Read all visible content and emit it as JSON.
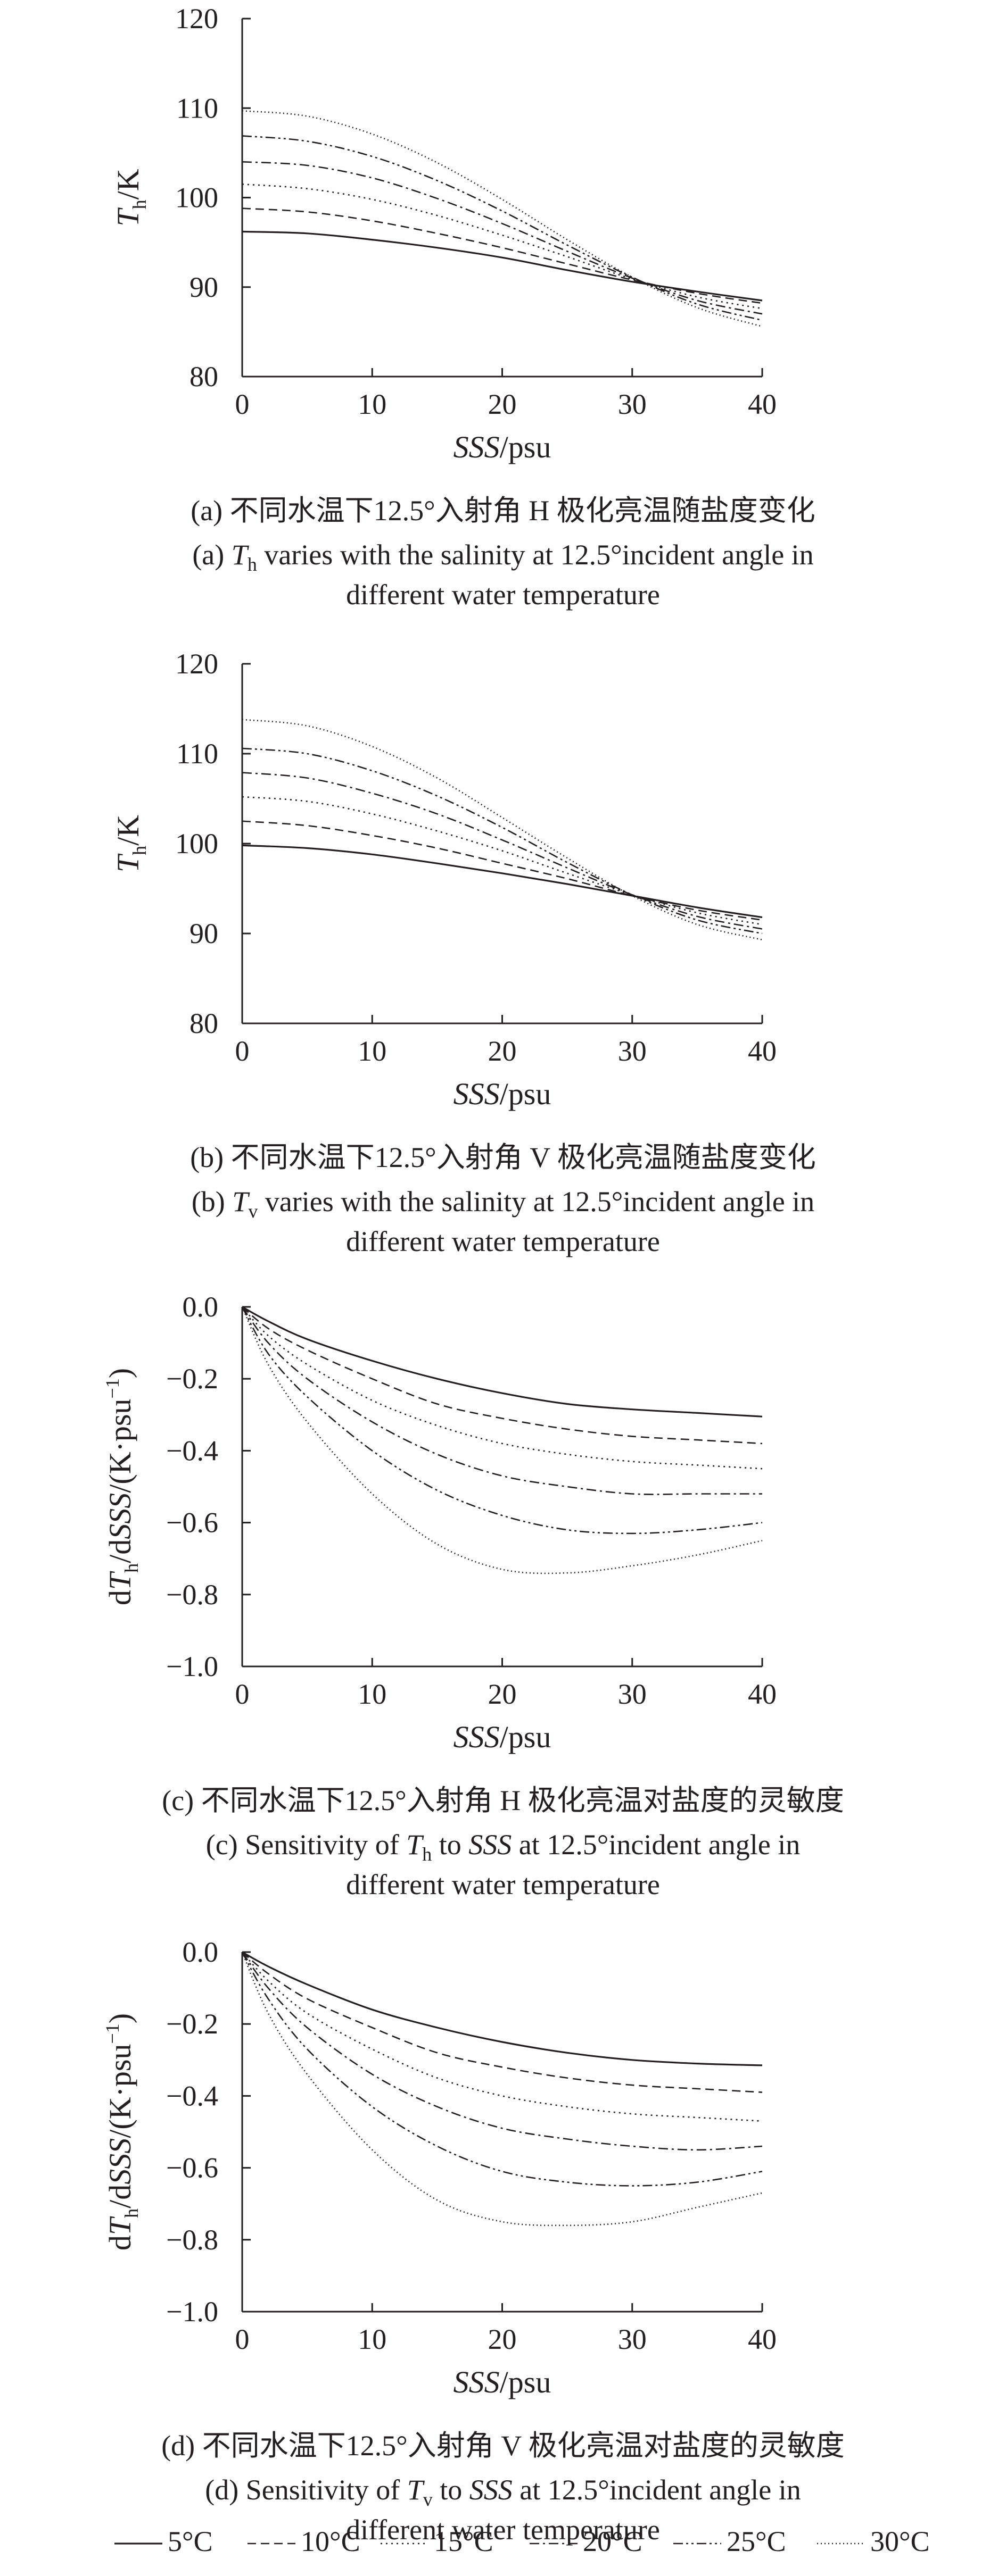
{
  "figure": {
    "legend": {
      "position": "bottom",
      "entries": [
        {
          "label": "5°C",
          "style": "solid"
        },
        {
          "label": "10°C",
          "style": "dash"
        },
        {
          "label": "15°C",
          "style": "dot"
        },
        {
          "label": "20°C",
          "style": "dashdot"
        },
        {
          "label": "25°C",
          "style": "dashdotdot"
        },
        {
          "label": "30°C",
          "style": "densedot"
        }
      ]
    }
  },
  "chart_data": [
    {
      "id": "a",
      "type": "line",
      "xlabel": "SSS/psu",
      "ylabel": "Th/K",
      "ylabel_main": "T",
      "ylabel_sub": "h",
      "ylabel_unit": "/K",
      "xlim": [
        0,
        40
      ],
      "ylim": [
        80,
        120
      ],
      "xticks": [
        0,
        10,
        20,
        30,
        40
      ],
      "yticks": [
        80,
        90,
        100,
        110,
        120
      ],
      "ytick_labels": [
        "80",
        "90",
        "100",
        "110",
        "120"
      ],
      "caption_cn": "(a) 不同水温下12.5°入射角 H 极化亮温随盐度变化",
      "caption_en_line1": "(a) Th varies with the salinity at 12.5°incident angle in",
      "caption_en_line2": "different water temperature",
      "x": [
        0,
        5,
        10,
        15,
        20,
        25,
        30,
        35,
        40
      ],
      "series": [
        {
          "name": "5°C",
          "values": [
            96.2,
            96.0,
            95.3,
            94.4,
            93.3,
            91.9,
            90.6,
            89.5,
            88.5
          ]
        },
        {
          "name": "10°C",
          "values": [
            98.8,
            98.4,
            97.4,
            96.0,
            94.4,
            92.6,
            90.8,
            89.3,
            88.2
          ]
        },
        {
          "name": "15°C",
          "values": [
            101.5,
            101.0,
            99.8,
            98.0,
            95.8,
            93.4,
            90.9,
            88.9,
            87.6
          ]
        },
        {
          "name": "20°C",
          "values": [
            104.0,
            103.6,
            102.2,
            99.9,
            97.1,
            94.0,
            91.0,
            88.5,
            87.0
          ]
        },
        {
          "name": "25°C",
          "values": [
            106.9,
            106.3,
            104.6,
            101.9,
            98.5,
            94.7,
            91.1,
            88.1,
            86.3
          ]
        },
        {
          "name": "30°C",
          "values": [
            109.7,
            109.1,
            107.1,
            103.9,
            99.8,
            95.3,
            91.1,
            87.7,
            85.6
          ]
        }
      ]
    },
    {
      "id": "b",
      "type": "line",
      "xlabel": "SSS/psu",
      "ylabel": "Th/K",
      "ylabel_main": "T",
      "ylabel_sub": "h",
      "ylabel_unit": "/K",
      "xlim": [
        0,
        40
      ],
      "ylim": [
        80,
        120
      ],
      "xticks": [
        0,
        10,
        20,
        30,
        40
      ],
      "yticks": [
        80,
        90,
        100,
        110,
        120
      ],
      "ytick_labels": [
        "80",
        "90",
        "100",
        "110",
        "120"
      ],
      "caption_cn": "(b) 不同水温下12.5°入射角 V 极化亮温随盐度变化",
      "caption_en_line1": "(b) Tv varies with the salinity at 12.5°incident angle in",
      "caption_en_line2": "different water temperature",
      "x": [
        0,
        5,
        10,
        15,
        20,
        25,
        30,
        35,
        40
      ],
      "series": [
        {
          "name": "5°C",
          "values": [
            99.8,
            99.5,
            98.8,
            97.8,
            96.7,
            95.5,
            94.2,
            92.9,
            91.8
          ]
        },
        {
          "name": "10°C",
          "values": [
            102.5,
            102.0,
            100.9,
            99.5,
            97.8,
            96.1,
            94.2,
            92.6,
            91.5
          ]
        },
        {
          "name": "15°C",
          "values": [
            105.2,
            104.7,
            103.3,
            101.4,
            99.2,
            96.7,
            94.3,
            92.3,
            91.0
          ]
        },
        {
          "name": "20°C",
          "values": [
            107.9,
            107.3,
            105.6,
            103.3,
            100.4,
            97.3,
            94.3,
            91.9,
            90.5
          ]
        },
        {
          "name": "25°C",
          "values": [
            110.6,
            110.0,
            108.1,
            105.3,
            101.8,
            97.9,
            94.3,
            91.5,
            90.0
          ]
        },
        {
          "name": "30°C",
          "values": [
            113.8,
            113.1,
            110.8,
            107.3,
            102.9,
            98.4,
            94.2,
            91.0,
            89.3
          ]
        }
      ]
    },
    {
      "id": "c",
      "type": "line",
      "xlabel": "SSS/psu",
      "ylabel": "dTh/dSSS/(K·psu−1)",
      "ylabel_main": "dT",
      "ylabel_sub": "h",
      "ylabel_unit": "/dSSS/(K·psu",
      "ylabel_sup": "−1",
      "ylabel_close": ")",
      "xlim": [
        0,
        40
      ],
      "ylim": [
        -1.0,
        0.0
      ],
      "xticks": [
        0,
        10,
        20,
        30,
        40
      ],
      "yticks": [
        -1.0,
        -0.8,
        -0.6,
        -0.4,
        -0.2,
        0.0
      ],
      "ytick_labels": [
        "−1.0",
        "−0.8",
        "−0.6",
        "−0.4",
        "−0.2",
        "0.0"
      ],
      "caption_cn": "(c) 不同水温下12.5°入射角 H 极化亮温对盐度的灵敏度",
      "caption_en_line1": "(c) Sensitivity of Th to SSS at 12.5°incident angle in",
      "caption_en_line2": "different water temperature",
      "x": [
        0,
        2,
        5,
        10,
        15,
        20,
        25,
        30,
        35,
        40
      ],
      "series": [
        {
          "name": "5°C",
          "values": [
            0.0,
            -0.04,
            -0.09,
            -0.15,
            -0.2,
            -0.24,
            -0.27,
            -0.285,
            -0.295,
            -0.305
          ]
        },
        {
          "name": "10°C",
          "values": [
            0.0,
            -0.06,
            -0.12,
            -0.2,
            -0.27,
            -0.31,
            -0.34,
            -0.36,
            -0.37,
            -0.38
          ]
        },
        {
          "name": "15°C",
          "values": [
            0.0,
            -0.08,
            -0.16,
            -0.26,
            -0.33,
            -0.38,
            -0.41,
            -0.43,
            -0.44,
            -0.45
          ]
        },
        {
          "name": "20°C",
          "values": [
            0.0,
            -0.1,
            -0.2,
            -0.32,
            -0.41,
            -0.47,
            -0.5,
            -0.52,
            -0.52,
            -0.52
          ]
        },
        {
          "name": "25°C",
          "values": [
            0.0,
            -0.13,
            -0.25,
            -0.4,
            -0.51,
            -0.58,
            -0.62,
            -0.63,
            -0.62,
            -0.6
          ]
        },
        {
          "name": "30°C",
          "values": [
            0.0,
            -0.16,
            -0.32,
            -0.52,
            -0.66,
            -0.73,
            -0.74,
            -0.72,
            -0.69,
            -0.65
          ]
        }
      ]
    },
    {
      "id": "d",
      "type": "line",
      "xlabel": "SSS/psu",
      "ylabel": "dTh/dSSS/(K·psu−1)",
      "ylabel_main": "dT",
      "ylabel_sub": "h",
      "ylabel_unit": "/dSSS/(K·psu",
      "ylabel_sup": "−1",
      "ylabel_close": ")",
      "xlim": [
        0,
        40
      ],
      "ylim": [
        -1.0,
        0.0
      ],
      "xticks": [
        0,
        10,
        20,
        30,
        40
      ],
      "yticks": [
        -1.0,
        -0.8,
        -0.6,
        -0.4,
        -0.2,
        0.0
      ],
      "ytick_labels": [
        "−1.0",
        "−0.8",
        "−0.6",
        "−0.4",
        "−0.2",
        "0.0"
      ],
      "caption_cn": "(d) 不同水温下12.5°入射角 V 极化亮温对盐度的灵敏度",
      "caption_en_line1": "(d) Sensitivity of Tv to SSS at 12.5°incident angle in",
      "caption_en_line2": "different water temperature",
      "x": [
        0,
        2,
        5,
        10,
        15,
        20,
        25,
        30,
        35,
        40
      ],
      "series": [
        {
          "name": "5°C",
          "values": [
            0.0,
            -0.04,
            -0.09,
            -0.16,
            -0.21,
            -0.25,
            -0.28,
            -0.3,
            -0.31,
            -0.315
          ]
        },
        {
          "name": "10°C",
          "values": [
            0.0,
            -0.06,
            -0.13,
            -0.21,
            -0.28,
            -0.32,
            -0.35,
            -0.37,
            -0.38,
            -0.39
          ]
        },
        {
          "name": "15°C",
          "values": [
            0.0,
            -0.08,
            -0.17,
            -0.27,
            -0.35,
            -0.4,
            -0.43,
            -0.45,
            -0.46,
            -0.47
          ]
        },
        {
          "name": "20°C",
          "values": [
            0.0,
            -0.1,
            -0.21,
            -0.34,
            -0.43,
            -0.49,
            -0.52,
            -0.54,
            -0.55,
            -0.54
          ]
        },
        {
          "name": "25°C",
          "values": [
            0.0,
            -0.13,
            -0.27,
            -0.43,
            -0.54,
            -0.61,
            -0.64,
            -0.65,
            -0.64,
            -0.61
          ]
        },
        {
          "name": "30°C",
          "values": [
            0.0,
            -0.17,
            -0.34,
            -0.55,
            -0.69,
            -0.75,
            -0.76,
            -0.75,
            -0.71,
            -0.67
          ]
        }
      ]
    }
  ]
}
